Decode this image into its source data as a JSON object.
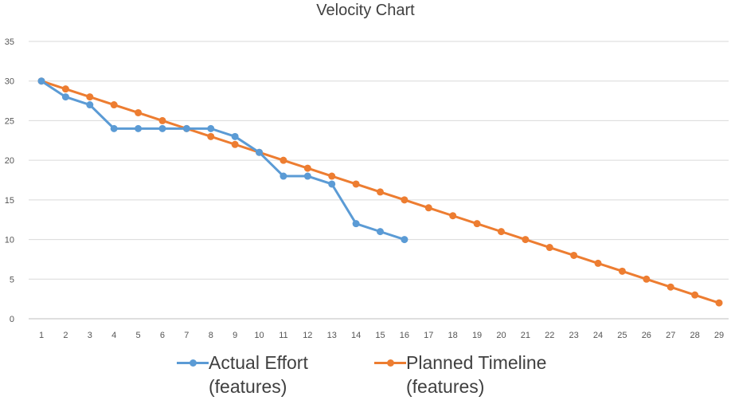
{
  "chart_data": {
    "type": "line",
    "title": "Velocity Chart",
    "xlabel": "",
    "ylabel": "",
    "x": [
      1,
      2,
      3,
      4,
      5,
      6,
      7,
      8,
      9,
      10,
      11,
      12,
      13,
      14,
      15,
      16,
      17,
      18,
      19,
      20,
      21,
      22,
      23,
      24,
      25,
      26,
      27,
      28,
      29
    ],
    "ylim": [
      0,
      35
    ],
    "yticks": [
      0,
      5,
      10,
      15,
      20,
      25,
      30,
      35
    ],
    "grid": true,
    "legend_position": "bottom",
    "series": [
      {
        "name": "Actual Effort (features)",
        "color": "#5b9bd5",
        "x": [
          1,
          2,
          3,
          4,
          5,
          6,
          7,
          8,
          9,
          10,
          11,
          12,
          13,
          14,
          15,
          16
        ],
        "values": [
          30,
          28,
          27,
          24,
          24,
          24,
          24,
          24,
          23,
          21,
          18,
          18,
          17,
          12,
          11,
          10
        ]
      },
      {
        "name": "Planned Timeline (features)",
        "color": "#ed7d31",
        "x": [
          1,
          2,
          3,
          4,
          5,
          6,
          7,
          8,
          9,
          10,
          11,
          12,
          13,
          14,
          15,
          16,
          17,
          18,
          19,
          20,
          21,
          22,
          23,
          24,
          25,
          26,
          27,
          28,
          29
        ],
        "values": [
          30,
          29,
          28,
          27,
          26,
          25,
          24,
          23,
          22,
          21,
          20,
          19,
          18,
          17,
          16,
          15,
          14,
          13,
          12,
          11,
          10,
          9,
          8,
          7,
          6,
          5,
          4,
          3,
          2
        ]
      }
    ]
  }
}
